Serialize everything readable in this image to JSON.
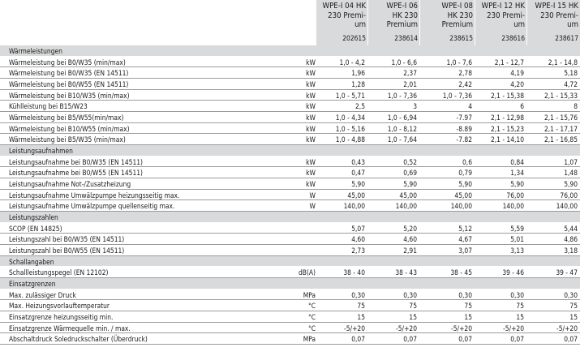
{
  "columns": [
    {
      "name": "WPE-I 04 HK\n230 Premi-\num",
      "art": "202615"
    },
    {
      "name": "WPE-I 06\nHK 230\nPremium",
      "art": "238614"
    },
    {
      "name": "WPE-I 08\nHK 230\nPremium",
      "art": "238615"
    },
    {
      "name": "WPE-I 12 HK\n230 Premi-\num",
      "art": "238616"
    },
    {
      "name": "WPE-I 15 HK\n230 Premi-\num",
      "art": "238617"
    }
  ],
  "rows": [
    {
      "type": "section",
      "label": "Wärmeleistungen"
    },
    {
      "label": "Wärmeleistung bei B0/W35 (min/max)",
      "unit": "kW",
      "values": [
        "1,0 - 4,2",
        "1,0 - 6,6",
        "1,0 - 7,6",
        "2,1 - 12,7",
        "2,1 - 14,8"
      ]
    },
    {
      "label": "Wärmeleistung bei B0/W35 (EN 14511)",
      "unit": "kW",
      "values": [
        "1,96",
        "2,37",
        "2,78",
        "4,19",
        "5,18"
      ]
    },
    {
      "label": "Wärmeleistung bei B0/W55 (EN 14511)",
      "unit": "kW",
      "values": [
        "1,28",
        "2,01",
        "2,42",
        "4,20",
        "4,72"
      ]
    },
    {
      "label": "Wärmeleistung bei B10/W35 (min/max)",
      "unit": "kW",
      "values": [
        "1,0 - 5,71",
        "1,0 - 7,36",
        "1,0 - 7,36",
        "2,1 - 15,38",
        "2,1 - 15,33"
      ]
    },
    {
      "label": "Kühlleistung bei B15/W23",
      "unit": "kW",
      "values": [
        "2,5",
        "3",
        "4",
        "6",
        "8"
      ]
    },
    {
      "label": "Wärmeleistung bei B5/W55(min/max)",
      "unit": "kW",
      "values": [
        "1,0 - 4,34",
        "1,0 - 6,94",
        "-7.97",
        "2,1 - 12,98",
        "2,1 - 15,76"
      ]
    },
    {
      "label": "Wärmeleistung bei B10/W55 (min/max)",
      "unit": "kW",
      "values": [
        "1,0 - 5,16",
        "1,0 - 8,12",
        "-8.89",
        "2,1 - 15,23",
        "2,1 - 17,17"
      ]
    },
    {
      "label": "Wärmeleistung bei B5/W35 (min/max)",
      "unit": "kW",
      "values": [
        "1,0 - 4,88",
        "1,0 - 7,64",
        "-7.82",
        "2,1 - 14,10",
        "2,1 - 16,85"
      ]
    },
    {
      "type": "section",
      "label": "Leistungsaufnahmen"
    },
    {
      "label": "Leistungsaufnahme bei B0/W35 (EN 14511)",
      "unit": "kW",
      "values": [
        "0,43",
        "0,52",
        "0,6",
        "0,84",
        "1,07"
      ]
    },
    {
      "label": "Leistungsaufnahme bei B0/W55 (EN 14511)",
      "unit": "kW",
      "values": [
        "0,47",
        "0,69",
        "0,79",
        "1,34",
        "1,48"
      ]
    },
    {
      "label": "Leistungsaufnahme Not-/Zusatzheizung",
      "unit": "kW",
      "values": [
        "5,90",
        "5,90",
        "5,90",
        "5,90",
        "5,90"
      ]
    },
    {
      "label": "Leistungsaufnahme Umwälzpumpe heizungsseitig max.",
      "unit": "W",
      "values": [
        "45,00",
        "45,00",
        "45,00",
        "76,00",
        "76,00"
      ]
    },
    {
      "label": "Leistungsaufnahme Umwälzpumpe quellenseitig max.",
      "unit": "W",
      "values": [
        "140,00",
        "140,00",
        "140,00",
        "140,00",
        "140,00"
      ]
    },
    {
      "type": "section",
      "label": "Leistungszahlen"
    },
    {
      "label": "SCOP (EN 14825)",
      "unit": "",
      "values": [
        "5,07",
        "5,20",
        "5,12",
        "5,59",
        "5,44"
      ]
    },
    {
      "label": "Leistungszahl bei B0/W35 (EN 14511)",
      "unit": "",
      "values": [
        "4,60",
        "4,60",
        "4,67",
        "5,01",
        "4,86"
      ]
    },
    {
      "label": "Leistungszahl bei B0/W55 (EN 14511)",
      "unit": "",
      "values": [
        "2,73",
        "2,91",
        "3,07",
        "3,13",
        "3,18"
      ]
    },
    {
      "type": "section",
      "label": "Schallangaben"
    },
    {
      "label": "Schallleistungspegel (EN 12102)",
      "unit": "dB(A)",
      "values": [
        "38 - 40",
        "38 - 43",
        "38 - 45",
        "39 - 46",
        "39 - 47"
      ]
    },
    {
      "type": "section",
      "label": "Einsatzgrenzen"
    },
    {
      "label": "Max. zulässiger Druck",
      "unit": "MPa",
      "values": [
        "0,30",
        "0,30",
        "0,30",
        "0,30",
        "0,30"
      ]
    },
    {
      "label": "Max. Heizungsvorlauftemperatur",
      "unit": "°C",
      "values": [
        "75",
        "75",
        "75",
        "75",
        "75"
      ]
    },
    {
      "label": "Einsatzgrenze heizungsseitig min.",
      "unit": "°C",
      "values": [
        "15",
        "15",
        "15",
        "15",
        "15"
      ]
    },
    {
      "label": "Einsatzgrenze Wärmequelle min. / max.",
      "unit": "°C",
      "values": [
        "-5/+20",
        "-5/+20",
        "-5/+20",
        "-5/+20",
        "-5/+20"
      ]
    },
    {
      "label": "Abschaltdruck Soledruckschalter (Überdruck)",
      "unit": "MPa",
      "values": [
        "0,07",
        "0,07",
        "0,07",
        "0,07",
        "0,07"
      ]
    }
  ]
}
